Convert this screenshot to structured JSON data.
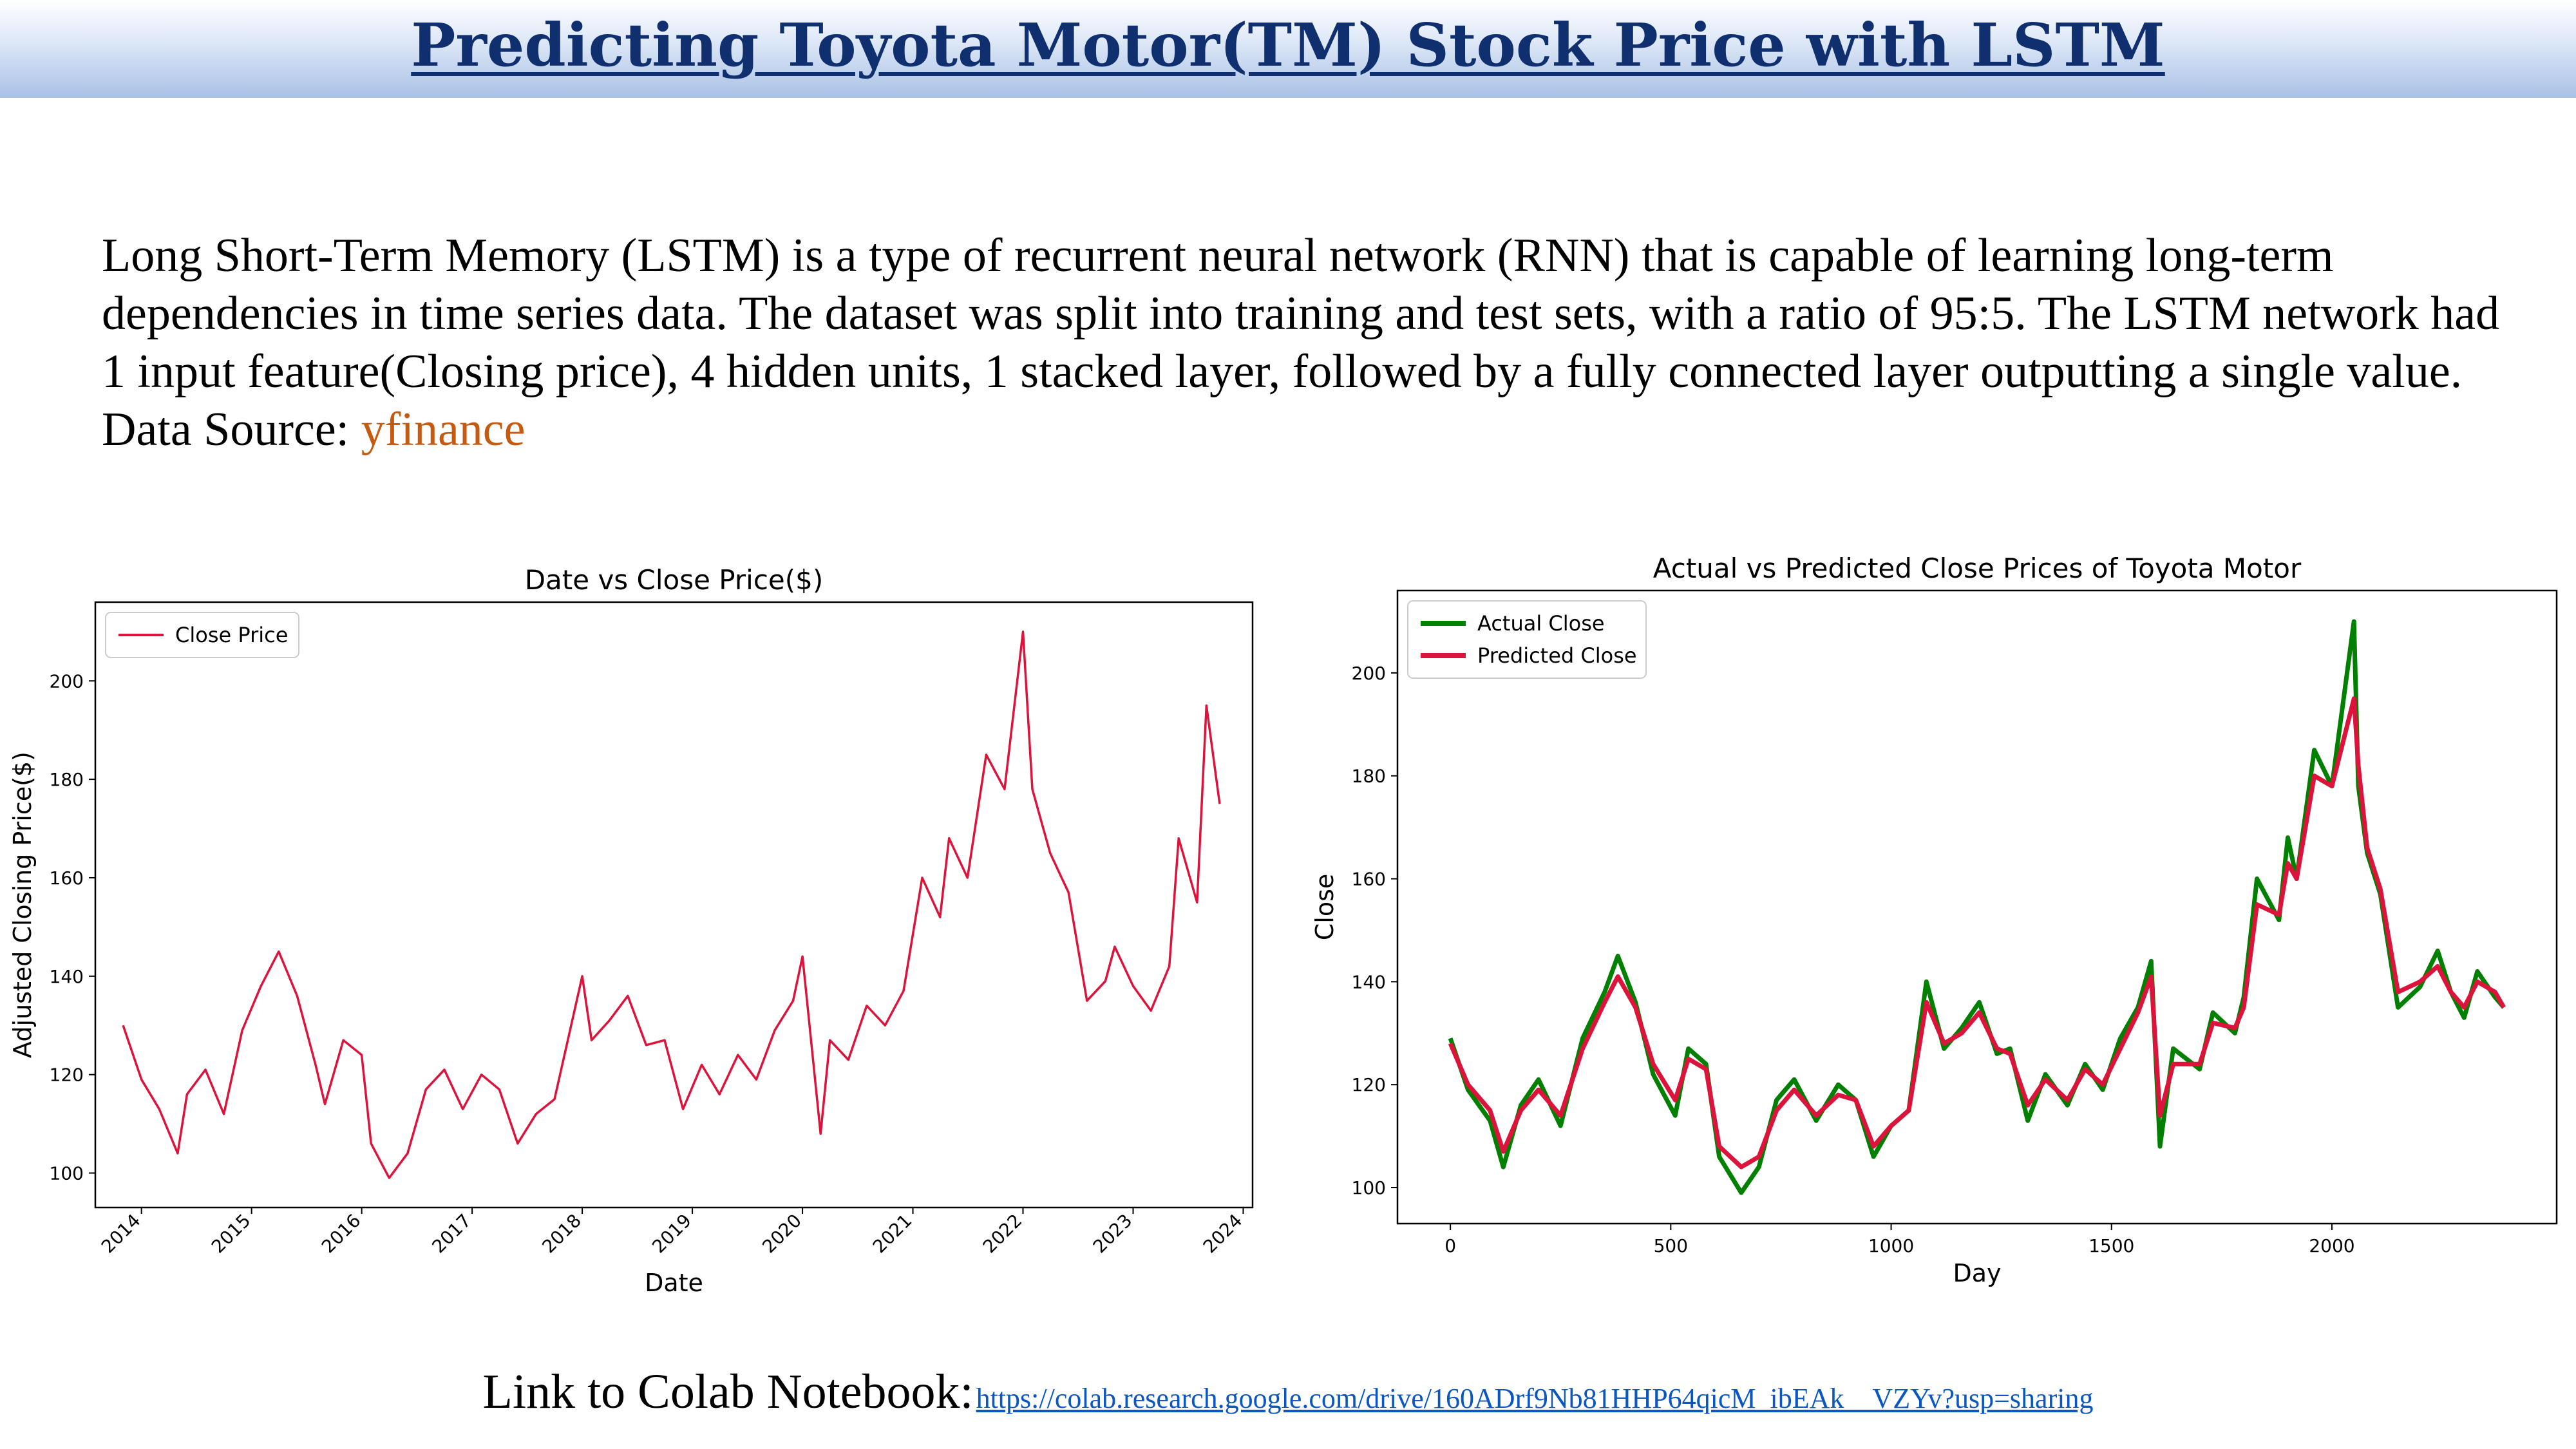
{
  "header": {
    "title": "Predicting Toyota Motor(TM) Stock Price with LSTM"
  },
  "intro": {
    "paragraph": "Long Short-Term Memory (LSTM) is a type of recurrent neural network (RNN) that is capable of learning long-term dependencies in time series data. The dataset was split into training and test sets, with a ratio of 95:5. The LSTM network had 1 input feature(Closing price), 4 hidden units, 1 stacked layer, followed by a fully connected layer outputting a single value.",
    "source_label": "Data Source:",
    "source_link": "yfinance"
  },
  "footer": {
    "label": "Link to Colab Notebook:",
    "link": "https://colab.research.google.com/drive/160ADrf9Nb81HHP64qicM_ibEAk__VZYv?usp=sharing"
  },
  "colors": {
    "title": "#0f2f6e",
    "source_link": "#c55a11",
    "close_line": "#dc143c",
    "actual_line": "#008000",
    "predicted_line": "#dc143c"
  },
  "chart_data": [
    {
      "type": "line",
      "title": "Date vs Close Price($)",
      "xlabel": "Date",
      "ylabel": "Adjusted Closing Price($)",
      "x_ticks": [
        "2014",
        "2015",
        "2016",
        "2017",
        "2018",
        "2019",
        "2020",
        "2021",
        "2022",
        "2023",
        "2024"
      ],
      "y_ticks": [
        "100",
        "120",
        "140",
        "160",
        "180",
        "200"
      ],
      "xlim": [
        "2013-08-01",
        "2024-02-01"
      ],
      "ylim": [
        93,
        216
      ],
      "legend": {
        "position": "upper-left",
        "entries": [
          "Close Price"
        ]
      },
      "series": [
        {
          "name": "Close Price",
          "color": "#dc143c",
          "x": [
            "2013-11-01",
            "2014-01-01",
            "2014-03-01",
            "2014-05-01",
            "2014-06-01",
            "2014-08-01",
            "2014-10-01",
            "2014-12-01",
            "2015-02-01",
            "2015-04-01",
            "2015-06-01",
            "2015-08-01",
            "2015-09-01",
            "2015-11-01",
            "2016-01-01",
            "2016-02-01",
            "2016-04-01",
            "2016-06-01",
            "2016-08-01",
            "2016-10-01",
            "2016-12-01",
            "2017-02-01",
            "2017-04-01",
            "2017-06-01",
            "2017-08-01",
            "2017-10-01",
            "2018-01-01",
            "2018-02-01",
            "2018-04-01",
            "2018-06-01",
            "2018-08-01",
            "2018-10-01",
            "2018-12-01",
            "2019-02-01",
            "2019-04-01",
            "2019-06-01",
            "2019-08-01",
            "2019-10-01",
            "2019-12-01",
            "2020-01-01",
            "2020-03-01",
            "2020-04-01",
            "2020-06-01",
            "2020-08-01",
            "2020-10-01",
            "2020-12-01",
            "2021-02-01",
            "2021-04-01",
            "2021-05-01",
            "2021-07-01",
            "2021-09-01",
            "2021-11-01",
            "2022-01-01",
            "2022-02-01",
            "2022-04-01",
            "2022-06-01",
            "2022-08-01",
            "2022-10-01",
            "2022-11-01",
            "2023-01-01",
            "2023-03-01",
            "2023-05-01",
            "2023-06-01",
            "2023-08-01",
            "2023-09-01",
            "2023-10-15"
          ],
          "y": [
            130,
            119,
            113,
            104,
            116,
            121,
            112,
            129,
            138,
            145,
            136,
            122,
            114,
            127,
            124,
            106,
            99,
            104,
            117,
            121,
            113,
            120,
            117,
            106,
            112,
            115,
            140,
            127,
            131,
            136,
            126,
            127,
            113,
            122,
            116,
            124,
            119,
            129,
            135,
            144,
            108,
            127,
            123,
            134,
            130,
            137,
            160,
            152,
            168,
            160,
            185,
            178,
            210,
            178,
            165,
            157,
            135,
            139,
            146,
            138,
            133,
            142,
            168,
            155,
            195,
            175
          ]
        }
      ]
    },
    {
      "type": "line",
      "title": "Actual vs Predicted Close Prices of Toyota Motor",
      "xlabel": "Day",
      "ylabel": "Close",
      "x_ticks": [
        "0",
        "500",
        "1000",
        "1500",
        "2000"
      ],
      "y_ticks": [
        "100",
        "120",
        "140",
        "160",
        "180",
        "200"
      ],
      "xlim": [
        -120,
        2510
      ],
      "ylim": [
        93,
        216
      ],
      "legend": {
        "position": "upper-left",
        "entries": [
          "Actual Close",
          "Predicted Close"
        ]
      },
      "series": [
        {
          "name": "Actual Close",
          "color": "#008000",
          "x": [
            0,
            40,
            90,
            120,
            160,
            200,
            250,
            300,
            350,
            380,
            420,
            460,
            510,
            540,
            580,
            610,
            660,
            700,
            740,
            780,
            830,
            880,
            920,
            960,
            1000,
            1040,
            1080,
            1120,
            1160,
            1200,
            1240,
            1270,
            1310,
            1350,
            1400,
            1440,
            1480,
            1520,
            1560,
            1590,
            1610,
            1640,
            1700,
            1730,
            1780,
            1800,
            1830,
            1880,
            1900,
            1920,
            1960,
            2000,
            2050,
            2060,
            2080,
            2110,
            2150,
            2200,
            2240,
            2270,
            2300,
            2330,
            2370,
            2390
          ],
          "y": [
            129,
            119,
            113,
            104,
            116,
            121,
            112,
            129,
            138,
            145,
            136,
            122,
            114,
            127,
            124,
            106,
            99,
            104,
            117,
            121,
            113,
            120,
            117,
            106,
            112,
            115,
            140,
            127,
            131,
            136,
            126,
            127,
            113,
            122,
            116,
            124,
            119,
            129,
            135,
            144,
            108,
            127,
            123,
            134,
            130,
            137,
            160,
            152,
            168,
            160,
            185,
            178,
            210,
            178,
            165,
            157,
            135,
            139,
            146,
            138,
            133,
            142,
            137,
            135
          ]
        },
        {
          "name": "Predicted Close",
          "color": "#dc143c",
          "x": [
            0,
            40,
            90,
            120,
            160,
            200,
            250,
            300,
            350,
            380,
            420,
            460,
            510,
            540,
            580,
            610,
            660,
            700,
            740,
            780,
            830,
            880,
            920,
            960,
            1000,
            1040,
            1080,
            1120,
            1160,
            1200,
            1240,
            1270,
            1310,
            1350,
            1400,
            1440,
            1480,
            1520,
            1560,
            1590,
            1610,
            1640,
            1700,
            1730,
            1780,
            1800,
            1830,
            1880,
            1900,
            1920,
            1960,
            2000,
            2050,
            2060,
            2080,
            2110,
            2150,
            2200,
            2240,
            2270,
            2300,
            2330,
            2370,
            2390
          ],
          "y": [
            128,
            120,
            115,
            107,
            115,
            119,
            114,
            127,
            136,
            141,
            135,
            124,
            117,
            125,
            123,
            108,
            104,
            106,
            115,
            119,
            114,
            118,
            117,
            108,
            112,
            115,
            136,
            128,
            130,
            134,
            127,
            126,
            116,
            121,
            117,
            123,
            120,
            127,
            134,
            141,
            114,
            124,
            124,
            132,
            131,
            135,
            155,
            153,
            163,
            160,
            180,
            178,
            195,
            182,
            166,
            158,
            138,
            140,
            143,
            138,
            135,
            140,
            138,
            135
          ]
        }
      ]
    }
  ]
}
